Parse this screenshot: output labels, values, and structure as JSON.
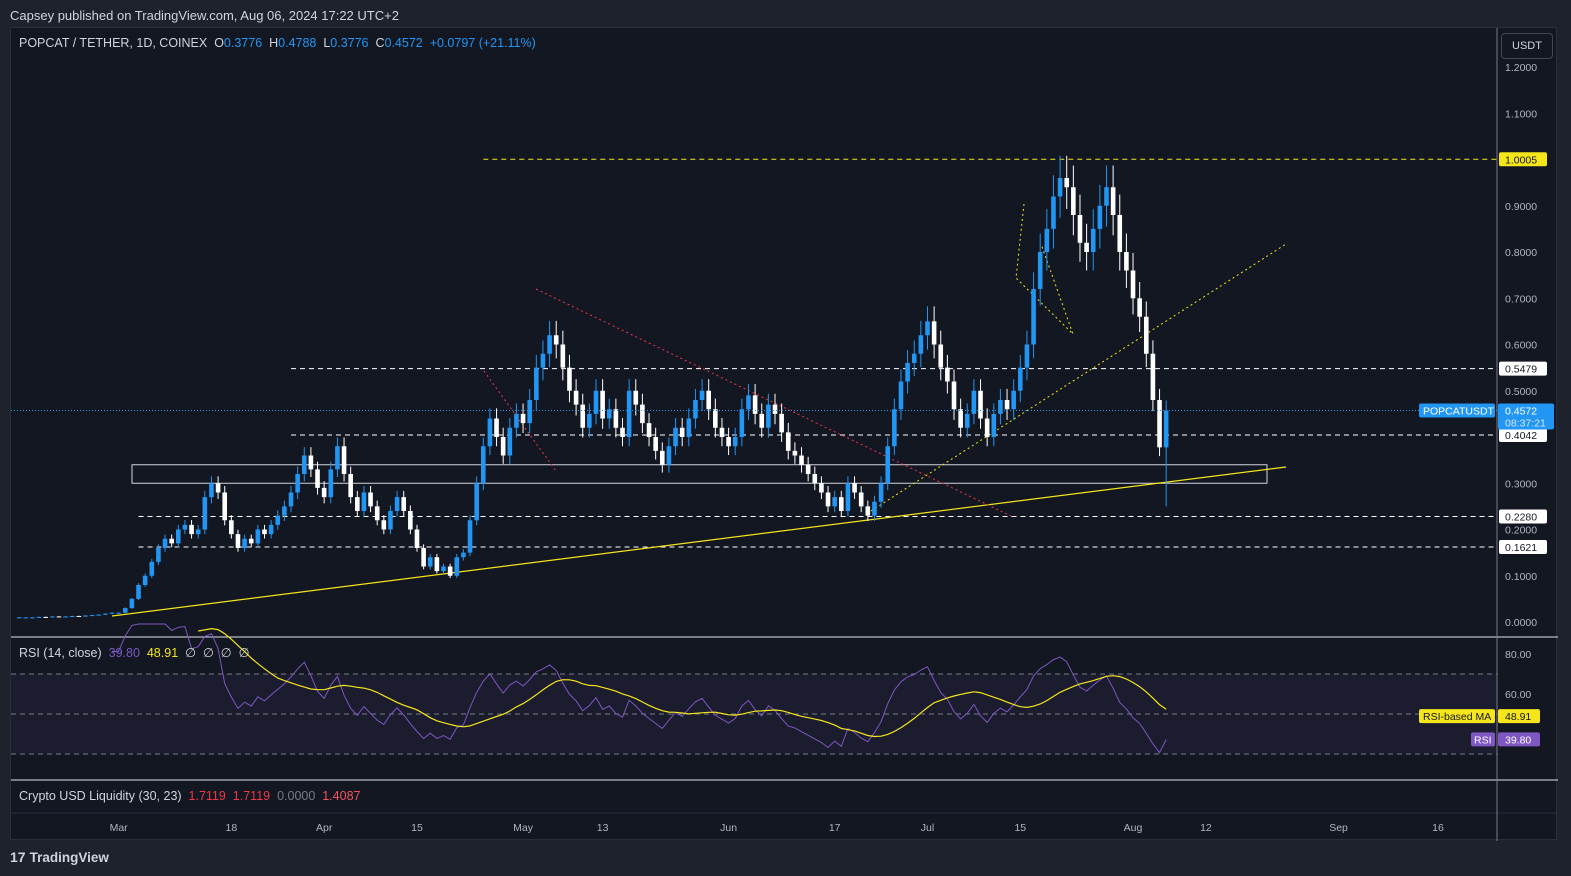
{
  "header": {
    "published": "Capsey published on TradingView.com, Aug 06, 2024 17:22 UTC+2"
  },
  "legend": {
    "symbol": "POPCAT / TETHER, 1D, COINEX",
    "o_label": "O",
    "o": "0.3776",
    "h_label": "H",
    "h": "0.4788",
    "l_label": "L",
    "l": "0.3776",
    "c_label": "C",
    "c": "0.4572",
    "change": "+0.0797 (+21.11%)"
  },
  "currency_button": "USDT",
  "price_tag": {
    "symbol": "POPCATUSDT",
    "price": "0.4572",
    "countdown": "08:37:21"
  },
  "levels": [
    {
      "label": "1.0005",
      "value": 1.0005,
      "color": "#f5e51b",
      "start": "Apr 25"
    },
    {
      "label": "0.5479",
      "value": 0.5479,
      "color": "#ffffff",
      "start": "Mar 27"
    },
    {
      "label": "0.4042",
      "value": 0.4042,
      "color": "#ffffff",
      "start": "Mar 27"
    },
    {
      "label": "0.2280",
      "value": 0.228,
      "color": "#ffffff",
      "start": "Mar 4"
    },
    {
      "label": "0.1621",
      "value": 0.1621,
      "color": "#ffffff",
      "start": "Mar 4"
    }
  ],
  "rsi": {
    "title": "RSI (14, close)",
    "value": "39.80",
    "ma": "48.91",
    "extras": [
      "∅",
      "∅",
      "∅",
      "∅"
    ],
    "ma_tag": "RSI-based MA",
    "rsi_tag": "RSI",
    "ticks": [
      "80.00",
      "60.00"
    ]
  },
  "liquidity": {
    "title": "Crypto USD Liquidity (30, 23)",
    "v1": "1.7119",
    "v2": "1.7119",
    "v3": "0.0000",
    "v4": "1.4087"
  },
  "logo": "TradingView",
  "colors": {
    "up": "#2196f3",
    "down": "#ffffff",
    "bg": "#131722",
    "rsi": "#7e57c2",
    "ma": "#f5e51b"
  },
  "chart_data": {
    "type": "candlestick",
    "title": "POPCAT / TETHER, 1D, COINEX",
    "start_date": "2024-02-15",
    "ylim": [
      0,
      1.2
    ],
    "y_ticks": [
      "1.2000",
      "1.1000",
      "0.9000",
      "0.8000",
      "0.7000",
      "0.6000",
      "0.5000",
      "0.3000",
      "0.2000",
      "0.1000",
      "0.0000"
    ],
    "x_ticks": [
      "Mar",
      "18",
      "Apr",
      "15",
      "May",
      "13",
      "Jun",
      "17",
      "Jul",
      "15",
      "Aug",
      "12",
      "Sep",
      "16"
    ],
    "closes": [
      0.01,
      0.01,
      0.01,
      0.011,
      0.01,
      0.012,
      0.011,
      0.012,
      0.013,
      0.012,
      0.014,
      0.015,
      0.016,
      0.018,
      0.02,
      0.02,
      0.03,
      0.05,
      0.08,
      0.1,
      0.13,
      0.16,
      0.18,
      0.17,
      0.2,
      0.21,
      0.19,
      0.2,
      0.27,
      0.3,
      0.28,
      0.22,
      0.19,
      0.16,
      0.18,
      0.17,
      0.2,
      0.19,
      0.21,
      0.23,
      0.25,
      0.28,
      0.32,
      0.36,
      0.33,
      0.29,
      0.27,
      0.33,
      0.38,
      0.32,
      0.27,
      0.24,
      0.28,
      0.25,
      0.22,
      0.2,
      0.24,
      0.27,
      0.24,
      0.2,
      0.16,
      0.12,
      0.14,
      0.11,
      0.12,
      0.1,
      0.14,
      0.15,
      0.22,
      0.3,
      0.38,
      0.44,
      0.4,
      0.36,
      0.42,
      0.45,
      0.43,
      0.48,
      0.55,
      0.58,
      0.62,
      0.6,
      0.55,
      0.5,
      0.47,
      0.42,
      0.45,
      0.5,
      0.44,
      0.46,
      0.42,
      0.4,
      0.5,
      0.47,
      0.43,
      0.4,
      0.37,
      0.34,
      0.38,
      0.42,
      0.4,
      0.44,
      0.48,
      0.5,
      0.46,
      0.42,
      0.4,
      0.38,
      0.4,
      0.46,
      0.49,
      0.45,
      0.42,
      0.47,
      0.45,
      0.41,
      0.37,
      0.36,
      0.34,
      0.32,
      0.3,
      0.28,
      0.25,
      0.27,
      0.24,
      0.3,
      0.28,
      0.25,
      0.23,
      0.26,
      0.3,
      0.38,
      0.46,
      0.52,
      0.56,
      0.58,
      0.62,
      0.65,
      0.6,
      0.55,
      0.52,
      0.46,
      0.42,
      0.45,
      0.5,
      0.44,
      0.4,
      0.45,
      0.48,
      0.46,
      0.5,
      0.55,
      0.6,
      0.72,
      0.8,
      0.85,
      0.92,
      0.96,
      0.94,
      0.88,
      0.82,
      0.8,
      0.85,
      0.9,
      0.94,
      0.88,
      0.8,
      0.76,
      0.7,
      0.66,
      0.58,
      0.48,
      0.3776,
      0.4572
    ],
    "last_candle": {
      "open": 0.3776,
      "high": 0.4788,
      "low": 0.3776,
      "close": 0.4572
    }
  }
}
